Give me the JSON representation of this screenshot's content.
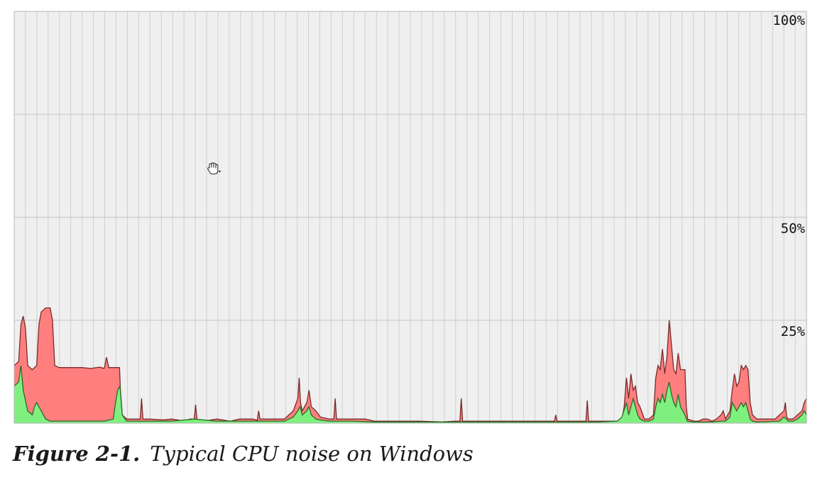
{
  "chart_data": {
    "type": "area",
    "ylim": [
      0,
      100
    ],
    "y_tick_labels": [
      {
        "value": 100,
        "label": "100%"
      },
      {
        "value": 50,
        "label": "50%"
      },
      {
        "value": 25,
        "label": "25%"
      }
    ],
    "grid": true,
    "vertical_grid_count": 70,
    "colors": {
      "background": "#efefef",
      "grid": "#cfcfcf",
      "total": "#ff7f7f",
      "total_line": "#7a2a2a",
      "user": "#7ff07f",
      "user_line": "#2a6a2a"
    },
    "series": [
      {
        "key": "total",
        "points": [
          [
            0,
            14
          ],
          [
            1,
            15
          ],
          [
            1.5,
            24
          ],
          [
            2,
            26
          ],
          [
            2.5,
            23
          ],
          [
            3,
            14
          ],
          [
            4,
            13
          ],
          [
            5,
            14
          ],
          [
            5.5,
            24
          ],
          [
            6,
            27
          ],
          [
            7,
            28
          ],
          [
            8,
            28
          ],
          [
            8.5,
            25
          ],
          [
            9,
            14
          ],
          [
            10,
            13.5
          ],
          [
            12,
            13.5
          ],
          [
            15,
            13.5
          ],
          [
            17,
            13.3
          ],
          [
            19,
            13.6
          ],
          [
            20,
            13.3
          ],
          [
            20.5,
            16
          ],
          [
            21,
            13.5
          ],
          [
            22,
            13.5
          ],
          [
            23,
            13.5
          ],
          [
            23.4,
            13.5
          ],
          [
            23.6,
            8
          ],
          [
            24,
            2
          ],
          [
            25,
            1
          ],
          [
            27,
            1
          ],
          [
            28,
            1
          ],
          [
            28.3,
            6
          ],
          [
            28.6,
            1
          ],
          [
            30,
            1
          ],
          [
            33,
            0.8
          ],
          [
            35,
            1
          ],
          [
            38,
            0.5
          ],
          [
            39,
            1
          ],
          [
            40,
            1
          ],
          [
            40.3,
            4.5
          ],
          [
            40.6,
            1
          ],
          [
            42,
            0.5
          ],
          [
            45,
            1
          ],
          [
            48,
            0.5
          ],
          [
            50,
            1
          ],
          [
            53,
            1
          ],
          [
            54,
            0.7
          ],
          [
            54.3,
            3
          ],
          [
            54.6,
            1
          ],
          [
            56,
            1
          ],
          [
            58,
            1
          ],
          [
            60,
            1
          ],
          [
            61,
            2
          ],
          [
            62,
            3
          ],
          [
            63,
            6
          ],
          [
            63.3,
            11
          ],
          [
            63.6,
            5
          ],
          [
            64,
            3
          ],
          [
            65,
            5
          ],
          [
            65.5,
            8
          ],
          [
            66,
            4
          ],
          [
            67,
            3
          ],
          [
            68,
            1.5
          ],
          [
            70,
            1
          ],
          [
            71,
            1
          ],
          [
            71.3,
            6
          ],
          [
            71.6,
            1
          ],
          [
            73,
            1
          ],
          [
            75,
            1
          ],
          [
            78,
            1
          ],
          [
            80,
            0.5
          ],
          [
            85,
            0.5
          ],
          [
            90,
            0.5
          ],
          [
            95,
            0.3
          ],
          [
            98,
            0.5
          ],
          [
            99,
            0.5
          ],
          [
            99.3,
            6
          ],
          [
            99.6,
            0.5
          ],
          [
            102,
            0.5
          ],
          [
            105,
            0.5
          ],
          [
            110,
            0.5
          ],
          [
            115,
            0.5
          ],
          [
            118,
            0.5
          ],
          [
            120,
            0.5
          ],
          [
            120.3,
            2
          ],
          [
            120.6,
            0.5
          ],
          [
            125,
            0.5
          ],
          [
            127,
            0.5
          ],
          [
            127.3,
            5.5
          ],
          [
            127.6,
            0.5
          ],
          [
            130,
            0.5
          ],
          [
            132,
            0.5
          ],
          [
            134,
            0.5
          ],
          [
            135,
            1
          ],
          [
            135.5,
            4
          ],
          [
            136,
            11
          ],
          [
            136.5,
            6
          ],
          [
            137,
            12
          ],
          [
            137.5,
            8
          ],
          [
            138,
            9
          ],
          [
            138.5,
            5
          ],
          [
            139,
            4
          ],
          [
            140,
            1
          ],
          [
            141,
            1
          ],
          [
            142,
            2
          ],
          [
            142.5,
            11
          ],
          [
            143,
            14
          ],
          [
            143.5,
            13
          ],
          [
            144,
            18
          ],
          [
            144.5,
            12
          ],
          [
            145,
            16
          ],
          [
            145.5,
            25
          ],
          [
            146,
            19
          ],
          [
            146.5,
            13
          ],
          [
            147,
            12
          ],
          [
            147.5,
            17
          ],
          [
            148,
            13
          ],
          [
            148.5,
            13
          ],
          [
            149,
            13
          ],
          [
            149.3,
            4
          ],
          [
            149.6,
            1
          ],
          [
            151,
            0.5
          ],
          [
            152,
            0.5
          ],
          [
            153,
            1
          ],
          [
            154,
            1
          ],
          [
            155,
            0.5
          ],
          [
            156,
            1
          ],
          [
            157,
            2
          ],
          [
            157.5,
            3
          ],
          [
            158,
            1
          ],
          [
            159,
            3
          ],
          [
            159.5,
            8
          ],
          [
            160,
            12
          ],
          [
            160.5,
            9
          ],
          [
            161,
            10
          ],
          [
            161.5,
            14
          ],
          [
            162,
            13
          ],
          [
            162.5,
            14
          ],
          [
            163,
            13
          ],
          [
            163.5,
            5
          ],
          [
            164,
            2
          ],
          [
            165,
            1
          ],
          [
            167,
            1
          ],
          [
            168,
            1
          ],
          [
            169,
            1
          ],
          [
            170,
            2
          ],
          [
            171,
            3
          ],
          [
            171.3,
            5
          ],
          [
            171.6,
            1.5
          ],
          [
            172,
            1
          ],
          [
            173,
            1
          ],
          [
            174,
            2
          ],
          [
            175,
            3
          ],
          [
            175.5,
            5
          ],
          [
            176,
            6
          ]
        ]
      },
      {
        "key": "user",
        "points": [
          [
            0,
            9
          ],
          [
            1,
            10
          ],
          [
            1.5,
            14
          ],
          [
            2,
            8
          ],
          [
            3,
            3
          ],
          [
            4,
            2
          ],
          [
            4.5,
            4
          ],
          [
            5,
            5
          ],
          [
            6,
            3
          ],
          [
            7,
            1
          ],
          [
            8,
            0.5
          ],
          [
            10,
            0.5
          ],
          [
            15,
            0.5
          ],
          [
            20,
            0.5
          ],
          [
            22,
            1
          ],
          [
            22.5,
            5
          ],
          [
            23,
            8
          ],
          [
            23.5,
            9
          ],
          [
            24,
            2
          ],
          [
            25,
            0.5
          ],
          [
            27,
            0.5
          ],
          [
            30,
            0.5
          ],
          [
            35,
            0.5
          ],
          [
            40,
            1
          ],
          [
            45,
            0.5
          ],
          [
            50,
            0.5
          ],
          [
            55,
            0.5
          ],
          [
            60,
            0.5
          ],
          [
            62,
            1.5
          ],
          [
            63,
            3
          ],
          [
            63.5,
            4
          ],
          [
            64,
            2
          ],
          [
            65,
            3
          ],
          [
            65.5,
            4
          ],
          [
            66,
            2
          ],
          [
            67,
            1
          ],
          [
            68,
            0.8
          ],
          [
            70,
            0.5
          ],
          [
            75,
            0.5
          ],
          [
            80,
            0.3
          ],
          [
            85,
            0.3
          ],
          [
            90,
            0.3
          ],
          [
            95,
            0.3
          ],
          [
            100,
            0.3
          ],
          [
            105,
            0.3
          ],
          [
            110,
            0.3
          ],
          [
            115,
            0.3
          ],
          [
            120,
            0.3
          ],
          [
            125,
            0.3
          ],
          [
            130,
            0.3
          ],
          [
            134,
            0.5
          ],
          [
            135,
            1.5
          ],
          [
            136,
            5
          ],
          [
            136.5,
            2
          ],
          [
            137,
            4
          ],
          [
            137.5,
            6
          ],
          [
            138,
            4
          ],
          [
            138.5,
            2
          ],
          [
            139,
            1
          ],
          [
            140,
            0.5
          ],
          [
            141,
            0.5
          ],
          [
            142,
            1
          ],
          [
            142.5,
            4
          ],
          [
            143,
            6
          ],
          [
            143.5,
            5
          ],
          [
            144,
            7
          ],
          [
            144.5,
            5
          ],
          [
            145,
            8
          ],
          [
            145.5,
            10
          ],
          [
            146,
            7
          ],
          [
            146.5,
            5
          ],
          [
            147,
            4
          ],
          [
            147.5,
            7
          ],
          [
            148,
            4
          ],
          [
            148.5,
            3
          ],
          [
            149,
            2
          ],
          [
            149.5,
            0.5
          ],
          [
            151,
            0.3
          ],
          [
            155,
            0.3
          ],
          [
            157,
            0.5
          ],
          [
            158,
            0.5
          ],
          [
            159,
            1.5
          ],
          [
            159.5,
            5
          ],
          [
            160,
            4
          ],
          [
            160.5,
            3
          ],
          [
            161,
            4
          ],
          [
            161.5,
            5
          ],
          [
            162,
            4
          ],
          [
            162.5,
            5
          ],
          [
            163,
            3
          ],
          [
            163.5,
            1
          ],
          [
            164,
            0.5
          ],
          [
            165,
            0.3
          ],
          [
            170,
            0.5
          ],
          [
            171,
            1.5
          ],
          [
            172,
            0.5
          ],
          [
            173,
            0.5
          ],
          [
            174,
            1
          ],
          [
            175,
            2
          ],
          [
            175.5,
            3
          ],
          [
            176,
            2
          ]
        ]
      }
    ]
  },
  "caption": {
    "label": "Figure 2-1.",
    "text": "Typical CPU noise on Windows"
  },
  "cursor": "hand-cursor-icon"
}
